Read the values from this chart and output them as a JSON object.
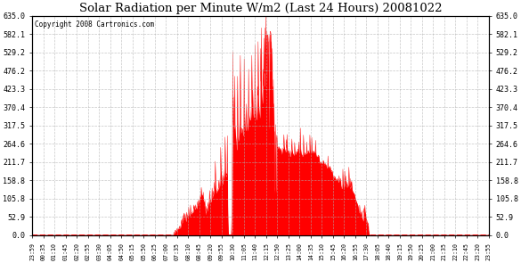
{
  "title": "Solar Radiation per Minute W/m2 (Last 24 Hours) 20081022",
  "copyright": "Copyright 2008 Cartronics.com",
  "background_color": "#ffffff",
  "fill_color": "#ff0000",
  "line_color": "#ff0000",
  "grid_color": "#b0b0b0",
  "ylim": [
    0.0,
    635.0
  ],
  "yticks": [
    0.0,
    52.9,
    105.8,
    158.8,
    211.7,
    264.6,
    317.5,
    370.4,
    423.3,
    476.2,
    529.2,
    582.1,
    635.0
  ],
  "xtick_labels": [
    "23:59",
    "00:35",
    "01:10",
    "01:45",
    "02:20",
    "02:55",
    "03:30",
    "04:05",
    "04:50",
    "05:15",
    "05:50",
    "06:25",
    "07:00",
    "07:35",
    "08:10",
    "08:45",
    "09:20",
    "09:55",
    "10:30",
    "11:05",
    "11:40",
    "12:15",
    "12:50",
    "13:25",
    "14:00",
    "14:35",
    "15:10",
    "15:45",
    "16:20",
    "16:55",
    "17:30",
    "18:05",
    "18:40",
    "19:15",
    "19:50",
    "20:25",
    "21:00",
    "21:35",
    "22:10",
    "22:45",
    "23:20",
    "23:55"
  ],
  "num_points": 1440
}
